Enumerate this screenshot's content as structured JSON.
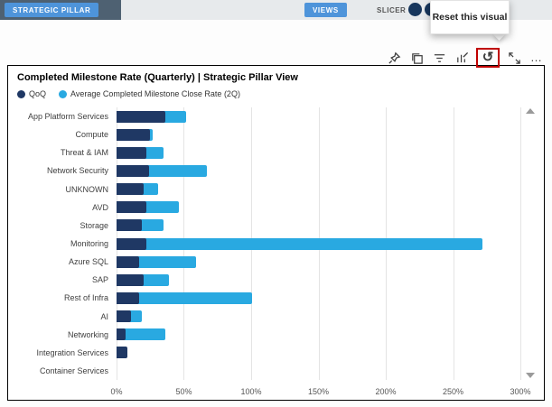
{
  "top_bar": {
    "strategic_pillar_label": "STRATEGIC PILLAR",
    "views_label": "VIEWS",
    "slicer_label": "SLICER"
  },
  "tooltip": {
    "text": "Reset this visual"
  },
  "toolbar": {
    "icons": [
      "pin-icon",
      "copy-icon",
      "filter-icon",
      "personalize-icon",
      "reset-icon",
      "focus-mode-icon",
      "more-options-icon"
    ],
    "reset_glyph": "↺",
    "more_glyph": "…",
    "reset_highlight_color": "#c00000"
  },
  "card": {
    "title": "Completed Milestone Rate (Quarterly) | Strategic Pillar View"
  },
  "chart_data": {
    "type": "bar",
    "orientation": "horizontal",
    "title": "Completed Milestone Rate (Quarterly) | Strategic Pillar View",
    "legend_position": "top",
    "grid": true,
    "categories": [
      "App Platform Services",
      "Compute",
      "Threat & IAM",
      "Network Security",
      "UNKNOWN",
      "AVD",
      "Storage",
      "Monitoring",
      "Azure SQL",
      "SAP",
      "Rest of Infra",
      "AI",
      "Networking",
      "Integration Services",
      "Container Services"
    ],
    "series": [
      {
        "name": "QoQ",
        "color": "#1f3864",
        "values": [
          36,
          25,
          22,
          24,
          20,
          22,
          19,
          22,
          17,
          20,
          17,
          11,
          7,
          8,
          0
        ]
      },
      {
        "name": "Average Completed Milestone Close Rate (2Q)",
        "color": "#29a9e1",
        "values": [
          52,
          27,
          35,
          67,
          31,
          46,
          35,
          272,
          59,
          39,
          101,
          19,
          36,
          0,
          0
        ]
      }
    ],
    "xmax": 300,
    "xlabel": "",
    "ylabel": "",
    "xticks": [
      {
        "value": 0,
        "label": "0%"
      },
      {
        "value": 50,
        "label": "50%"
      },
      {
        "value": 100,
        "label": "100%"
      },
      {
        "value": 150,
        "label": "150%"
      },
      {
        "value": 200,
        "label": "200%"
      },
      {
        "value": 250,
        "label": "250%"
      },
      {
        "value": 300,
        "label": "300%"
      }
    ]
  }
}
